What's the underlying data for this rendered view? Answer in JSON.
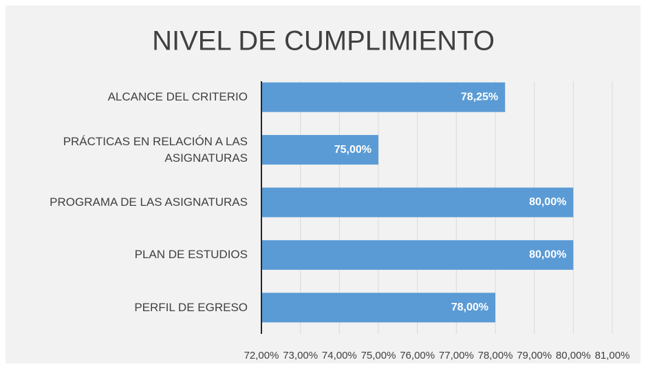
{
  "chart_data": {
    "type": "bar",
    "orientation": "horizontal",
    "title": "NIVEL DE CUMPLIMIENTO",
    "categories": [
      "ALCANCE DEL CRITERIO",
      "PRÁCTICAS EN RELACIÓN A LAS ASIGNATURAS",
      "PROGRAMA DE LAS ASIGNATURAS",
      "PLAN DE ESTUDIOS",
      "PERFIL DE EGRESO"
    ],
    "values": [
      78.25,
      75,
      80,
      80,
      78
    ],
    "value_labels": [
      "78,25%",
      "75,00%",
      "80,00%",
      "80,00%",
      "78,00%"
    ],
    "color": "#5b9bd5",
    "xlim": [
      72,
      81
    ],
    "xticks": [
      {
        "value": 72,
        "label": "72,00%"
      },
      {
        "value": 73,
        "label": "73,00%"
      },
      {
        "value": 74,
        "label": "74,00%"
      },
      {
        "value": 75,
        "label": "75,00%"
      },
      {
        "value": 76,
        "label": "76,00%"
      },
      {
        "value": 77,
        "label": "77,00%"
      },
      {
        "value": 78,
        "label": "78,00%"
      },
      {
        "value": 79,
        "label": "79,00%"
      },
      {
        "value": 80,
        "label": "80,00%"
      },
      {
        "value": 81,
        "label": "81,00%"
      }
    ],
    "grid": true
  }
}
